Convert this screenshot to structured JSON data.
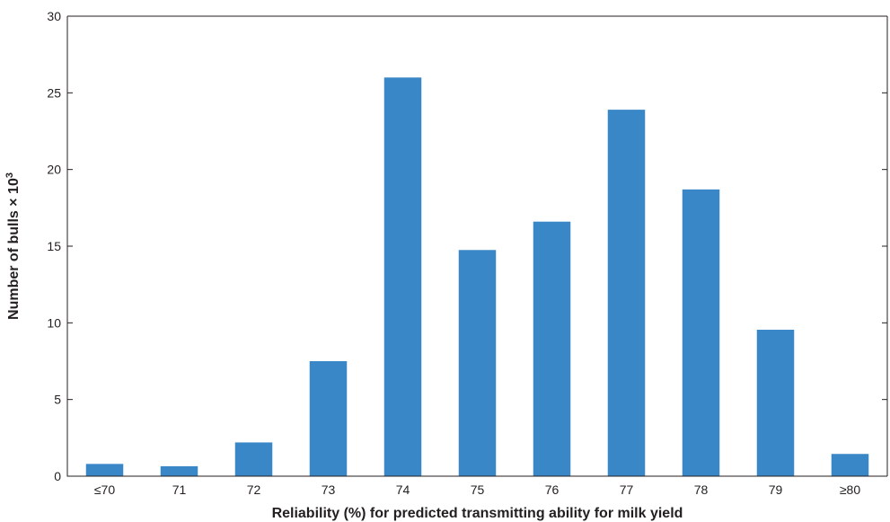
{
  "chart_data": {
    "type": "bar",
    "categories": [
      "≤70",
      "71",
      "72",
      "73",
      "74",
      "75",
      "76",
      "77",
      "78",
      "79",
      "≥80"
    ],
    "values": [
      0.8,
      0.65,
      2.2,
      7.5,
      26.0,
      14.75,
      16.6,
      23.9,
      18.7,
      9.55,
      1.45
    ],
    "title": "",
    "xlabel": "Reliability (%) for predicted transmitting ability for milk yield",
    "ylabel_main": "Number of bulls × 10",
    "ylabel_sup": "3",
    "ylim": [
      0,
      30
    ],
    "yticks": [
      0,
      5,
      10,
      15,
      20,
      25,
      30
    ],
    "grid": false,
    "legend": "none",
    "bar_color": "#3a87c8"
  }
}
